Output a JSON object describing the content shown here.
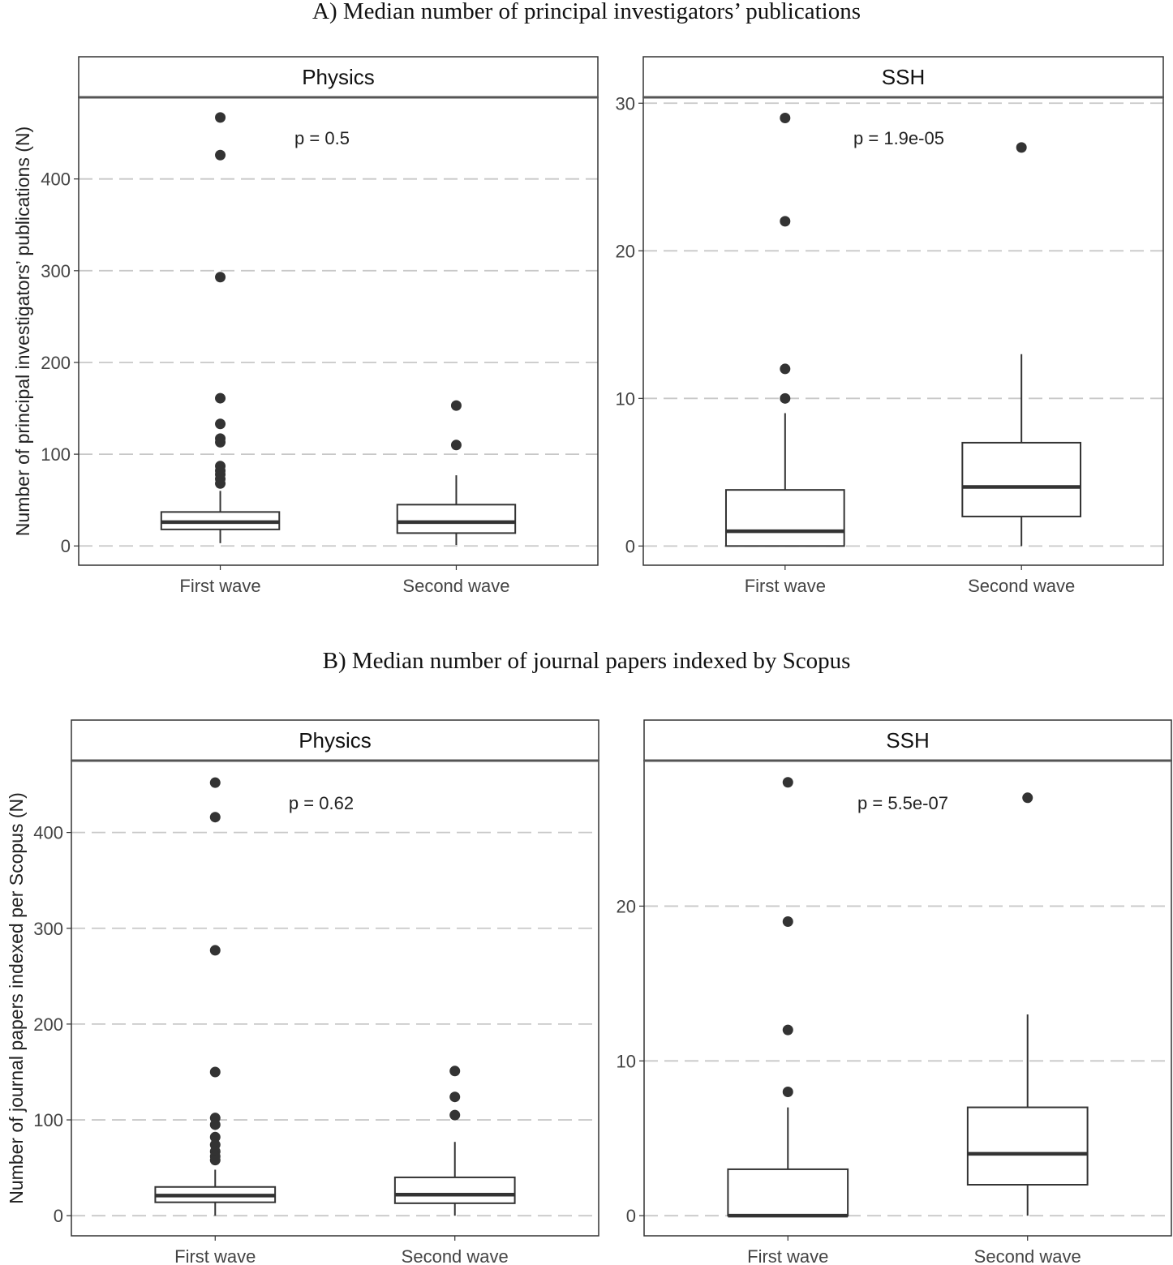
{
  "section_titles": [
    "A) Median number of principal investigators’ publications",
    "B) Median number of journal papers indexed by Scopus"
  ],
  "chart_data": [
    {
      "type": "box",
      "section": 0,
      "facet": "Physics",
      "ylabel": "Number of principal investigators’ publications (N)",
      "categories": [
        "First wave",
        "Second wave"
      ],
      "annotation": "p = 0.5",
      "ylim": [
        -21,
        489
      ],
      "yticks": [
        0,
        100,
        200,
        300,
        400
      ],
      "grid": "horizontal dashed",
      "boxes": [
        {
          "whisker_low": 3,
          "q1": 18,
          "median": 26,
          "q3": 37,
          "whisker_high": 60,
          "outliers": [
            467,
            426,
            293,
            161,
            133,
            117,
            113,
            87,
            82,
            78,
            73,
            68
          ]
        },
        {
          "whisker_low": 1,
          "q1": 14,
          "median": 26,
          "q3": 45,
          "whisker_high": 77,
          "outliers": [
            153,
            110
          ]
        }
      ]
    },
    {
      "type": "box",
      "section": 0,
      "facet": "SSH",
      "ylabel": "",
      "categories": [
        "First wave",
        "Second wave"
      ],
      "annotation": "p = 1.9e-05",
      "ylim": [
        -1.3,
        30.4
      ],
      "yticks": [
        0,
        10,
        20,
        30
      ],
      "grid": "horizontal dashed",
      "boxes": [
        {
          "whisker_low": 0,
          "q1": 0,
          "median": 1,
          "q3": 3.8,
          "whisker_high": 9,
          "outliers": [
            10,
            12,
            22,
            29
          ]
        },
        {
          "whisker_low": 0,
          "q1": 2,
          "median": 4,
          "q3": 7,
          "whisker_high": 13,
          "outliers": [
            27
          ]
        }
      ]
    },
    {
      "type": "box",
      "section": 1,
      "facet": "Physics",
      "ylabel": "Number of journal papers indexed per Scopus (N)",
      "categories": [
        "First wave",
        "Second wave"
      ],
      "annotation": "p = 0.62",
      "ylim": [
        -21,
        475
      ],
      "yticks": [
        0,
        100,
        200,
        300,
        400
      ],
      "grid": "horizontal dashed",
      "boxes": [
        {
          "whisker_low": 0,
          "q1": 14,
          "median": 21,
          "q3": 30,
          "whisker_high": 48,
          "outliers": [
            452,
            416,
            277,
            150,
            102,
            95,
            82,
            74,
            67,
            62,
            58
          ]
        },
        {
          "whisker_low": 0,
          "q1": 13,
          "median": 22,
          "q3": 40,
          "whisker_high": 77,
          "outliers": [
            151,
            124,
            105
          ]
        }
      ]
    },
    {
      "type": "box",
      "section": 1,
      "facet": "SSH",
      "ylabel": "",
      "categories": [
        "First wave",
        "Second wave"
      ],
      "annotation": "p = 5.5e-07",
      "ylim": [
        -1.3,
        29.4
      ],
      "yticks": [
        0,
        10,
        20
      ],
      "grid": "horizontal dashed",
      "boxes": [
        {
          "whisker_low": 0,
          "q1": 0,
          "median": 0,
          "q3": 3,
          "whisker_high": 7,
          "outliers": [
            8,
            12,
            19,
            28
          ]
        },
        {
          "whisker_low": 0,
          "q1": 2,
          "median": 4,
          "q3": 7,
          "whisker_high": 13,
          "outliers": [
            27
          ]
        }
      ]
    }
  ]
}
